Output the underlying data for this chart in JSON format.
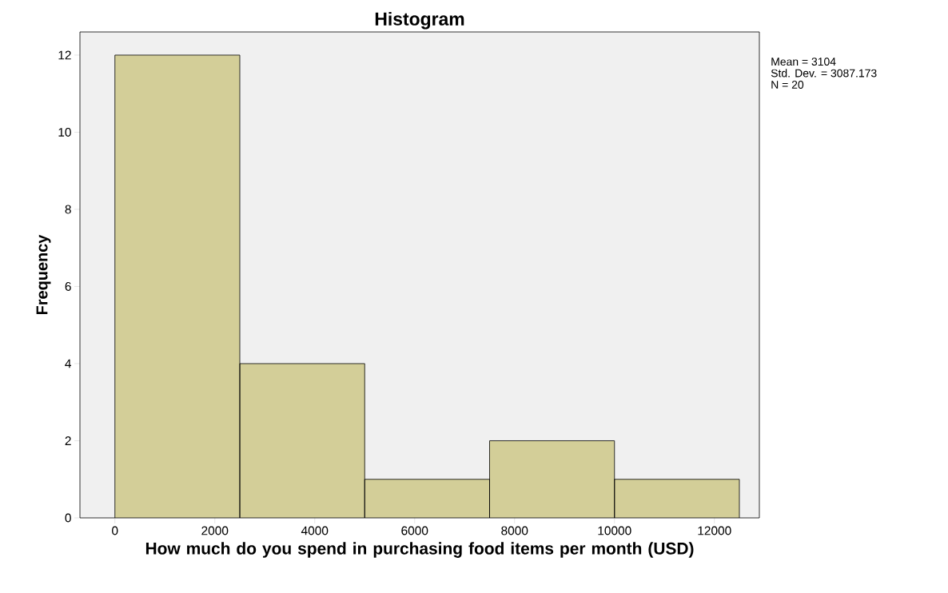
{
  "chart_data": {
    "type": "histogram",
    "title": "Histogram",
    "xlabel": "How much do you spend in purchasing food items per month (USD)",
    "ylabel": "Frequency",
    "bins": [
      0,
      2500,
      5000,
      7500,
      10000,
      12500
    ],
    "values": [
      12,
      4,
      1,
      2,
      1
    ],
    "color": "#d3ce98",
    "xlim": [
      -700,
      12900
    ],
    "ylim": [
      0,
      12.6
    ],
    "xticks": [
      0,
      2000,
      4000,
      6000,
      8000,
      10000,
      12000
    ],
    "yticks": [
      0,
      2,
      4,
      6,
      8,
      10,
      12
    ],
    "annotations": [
      "Mean = 3104",
      "Std. Dev. = 3087.173",
      "N = 20"
    ],
    "grid": false
  }
}
